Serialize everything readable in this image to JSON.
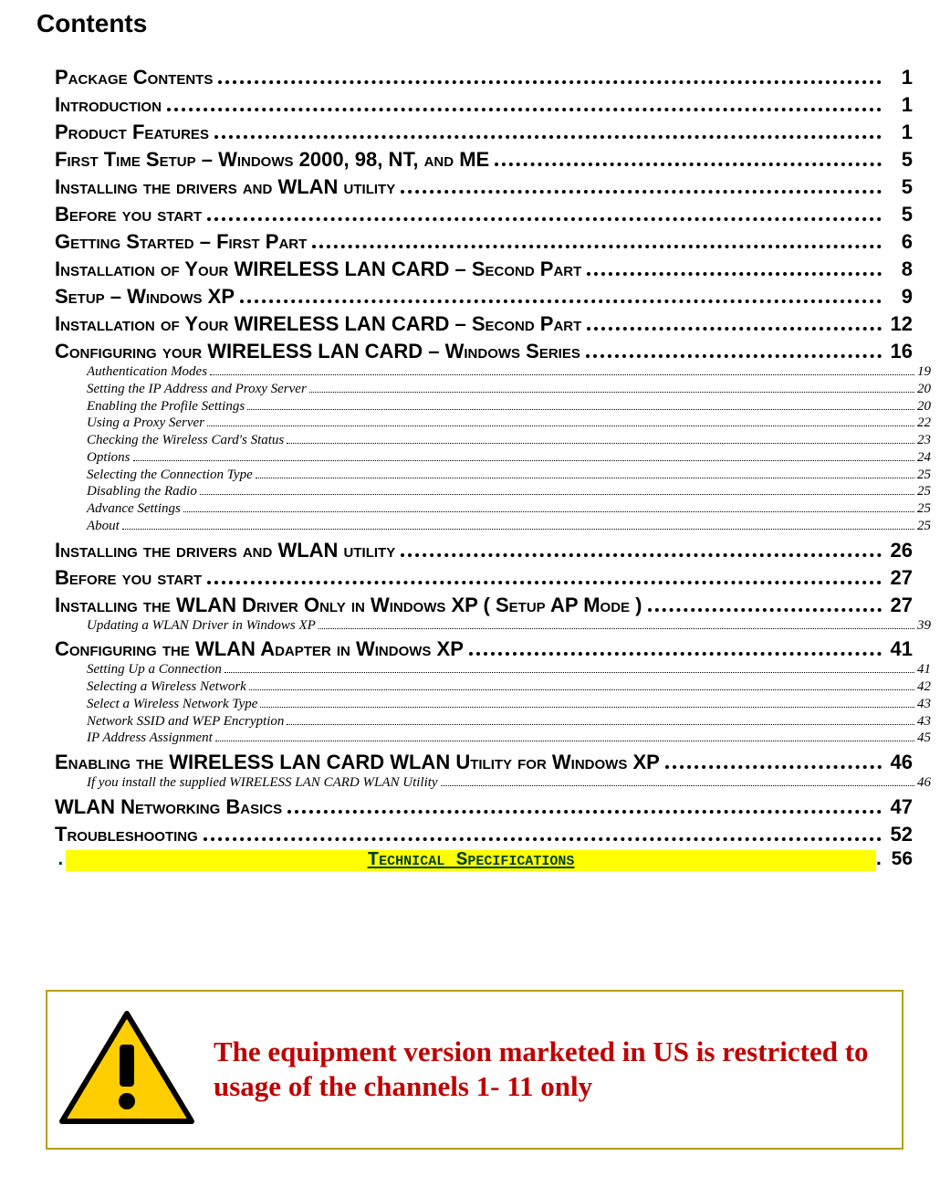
{
  "heading": "Contents",
  "toc": [
    {
      "lvl": 1,
      "label": "Package Contents",
      "page": "1"
    },
    {
      "lvl": 1,
      "label": "Introduction",
      "page": "1"
    },
    {
      "lvl": 1,
      "label": "Product Features",
      "page": "1"
    },
    {
      "lvl": 1,
      "label": "First Time Setup – Windows 2000, 98, NT, and ME",
      "page": "5"
    },
    {
      "lvl": 1,
      "label": "Installing the drivers and WLAN utility",
      "page": "5"
    },
    {
      "lvl": 1,
      "label": "Before you start",
      "page": "5"
    },
    {
      "lvl": 1,
      "label": "Getting Started – First Part",
      "page": "6"
    },
    {
      "lvl": 1,
      "label": "Installation of Your WIRELESS LAN CARD – Second Part",
      "page": "8"
    },
    {
      "lvl": 1,
      "label": "Setup – Windows XP",
      "page": "9"
    },
    {
      "lvl": 1,
      "label": "Installation of Your WIRELESS LAN CARD – Second Part",
      "page": "12"
    },
    {
      "lvl": 1,
      "label": "Configuring your WIRELESS LAN CARD  – Windows Series",
      "page": "16"
    },
    {
      "lvl": 2,
      "label": "Authentication Modes",
      "page": "19"
    },
    {
      "lvl": 2,
      "label": "Setting the IP Address and Proxy Server",
      "page": "20"
    },
    {
      "lvl": 2,
      "label": "Enabling the Profile Settings",
      "page": "20"
    },
    {
      "lvl": 2,
      "label": "Using a Proxy Server",
      "page": "22"
    },
    {
      "lvl": 2,
      "label": "Checking the Wireless Card's Status",
      "page": "23"
    },
    {
      "lvl": 2,
      "label": "Options",
      "page": "24"
    },
    {
      "lvl": 2,
      "label": "Selecting the Connection Type",
      "page": "25"
    },
    {
      "lvl": 2,
      "label": "Disabling the Radio",
      "page": "25"
    },
    {
      "lvl": 2,
      "label": "Advance Settings",
      "page": "25"
    },
    {
      "lvl": 2,
      "label": "About",
      "page": "25"
    },
    {
      "lvl": 1,
      "label": "Installing the drivers and WLAN utility",
      "page": "26"
    },
    {
      "lvl": 1,
      "label": "Before you start",
      "page": "27"
    },
    {
      "lvl": 1,
      "label": "Installing the WLAN Driver Only in Windows XP ( Setup AP Mode )",
      "page": "27"
    },
    {
      "lvl": 2,
      "label": "Updating a WLAN Driver in Windows XP",
      "page": "39"
    },
    {
      "lvl": 1,
      "label": "Configuring the WLAN Adapter in Windows XP",
      "page": "41"
    },
    {
      "lvl": 2,
      "label": "Setting Up a Connection",
      "page": "41"
    },
    {
      "lvl": 2,
      "label": "Selecting a Wireless Network",
      "page": "42"
    },
    {
      "lvl": 2,
      "label": "Select a Wireless Network Type",
      "page": "43"
    },
    {
      "lvl": 2,
      "label": "Network SSID and WEP Encryption",
      "page": "43"
    },
    {
      "lvl": 2,
      "label": "IP Address Assignment",
      "page": "45"
    },
    {
      "lvl": 1,
      "label": "Enabling the WIRELESS LAN CARD WLAN Utility for Windows XP",
      "page": "46"
    },
    {
      "lvl": 2,
      "label": "If you install the supplied WIRELESS LAN CARD WLAN Utility",
      "page": "46"
    },
    {
      "lvl": 1,
      "label": "WLAN Networking Basics",
      "page": "47"
    },
    {
      "lvl": 1,
      "label": "Troubleshooting",
      "page": "52"
    }
  ],
  "tech_spec": {
    "label": "Technical Specifications",
    "page": "56"
  },
  "warning": {
    "text": "The equipment version marketed in US is restricted  to usage of the channels 1- 11 only",
    "border_color": "#b8a000",
    "text_color": "#c00000",
    "icon_bg": "#ffce00",
    "icon_fg": "#000000"
  },
  "style": {
    "level1_fontsize": 22,
    "level2_fontsize": 15,
    "heading_fontsize": 28,
    "tech_bg": "#ffff00",
    "tech_color": "#003e2f"
  }
}
